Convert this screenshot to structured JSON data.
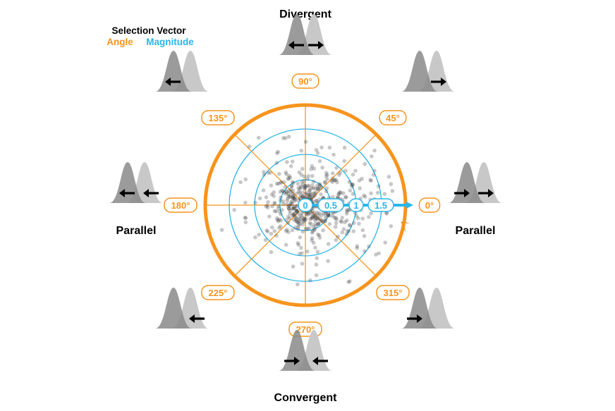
{
  "colors": {
    "angle": "#f7941d",
    "magnitude": "#29b6e8",
    "points": "#3a3a3a",
    "dist_dark": "#8a8a8a",
    "dist_light": "#c8c8c8",
    "arrow": "#000000"
  },
  "legend": {
    "title": "Selection Vector",
    "angle_label": "Angle",
    "magnitude_label": "Magnitude"
  },
  "directions": {
    "top": "Divergent",
    "bottom": "Convergent",
    "left": "Parallel",
    "right": "Parallel"
  },
  "angle_labels": [
    "0°",
    "45°",
    "90°",
    "135°",
    "180°",
    "225°",
    "270°",
    "315°"
  ],
  "magnitude_labels": [
    "0",
    "0.5",
    "1",
    "1.5"
  ],
  "icons": {
    "0": {
      "left_arrow": "right",
      "right_arrow": "right"
    },
    "45": {
      "left_arrow": "none",
      "right_arrow": "right"
    },
    "90": {
      "left_arrow": "left",
      "right_arrow": "right"
    },
    "135": {
      "left_arrow": "left",
      "right_arrow": "none"
    },
    "180": {
      "left_arrow": "left",
      "right_arrow": "left"
    },
    "225": {
      "left_arrow": "none",
      "right_arrow": "left"
    },
    "270": {
      "left_arrow": "right",
      "right_arrow": "left"
    },
    "315": {
      "left_arrow": "right",
      "right_arrow": "none"
    }
  }
}
